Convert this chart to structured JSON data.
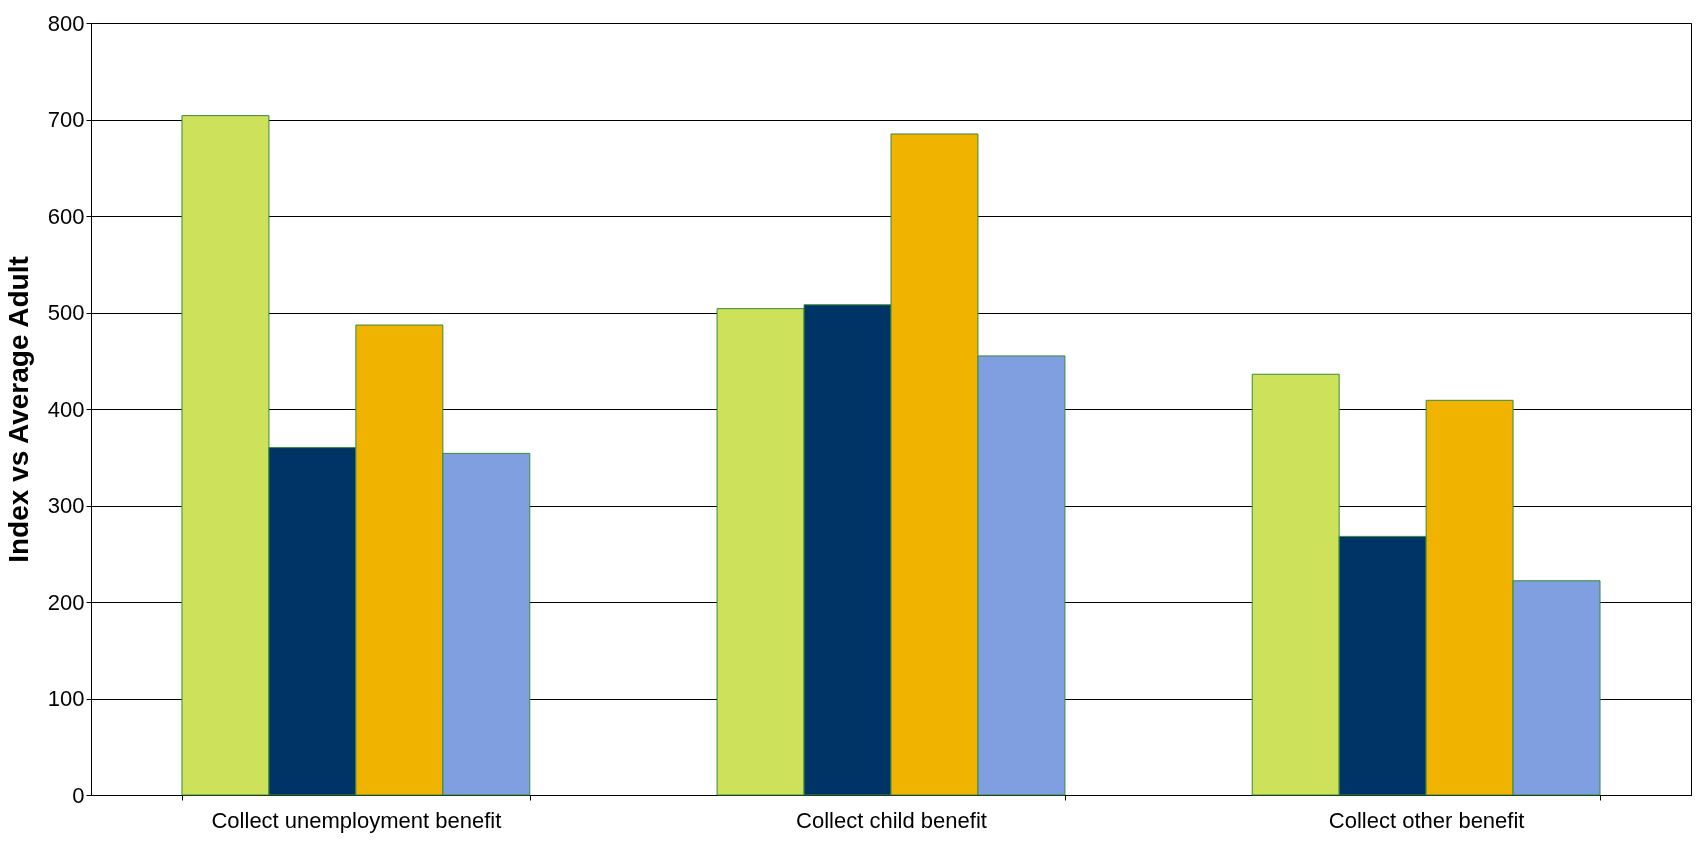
{
  "chart_data": {
    "type": "bar",
    "ylabel": "Index vs Average Adult",
    "categories": [
      "Collect unemployment benefit",
      "Collect child benefit",
      "Collect other benefit"
    ],
    "series": [
      {
        "color": "#cde25a",
        "values": [
          704,
          504,
          436
        ]
      },
      {
        "color": "#003366",
        "values": [
          360,
          508,
          268
        ]
      },
      {
        "color": "#f0b400",
        "values": [
          487,
          685,
          409
        ]
      },
      {
        "color": "#7f9fe0",
        "values": [
          354,
          455,
          222
        ]
      }
    ],
    "ylim": [
      0,
      800
    ],
    "yticks": [
      0,
      100,
      200,
      300,
      400,
      500,
      600,
      700,
      800
    ],
    "grid": "y"
  }
}
